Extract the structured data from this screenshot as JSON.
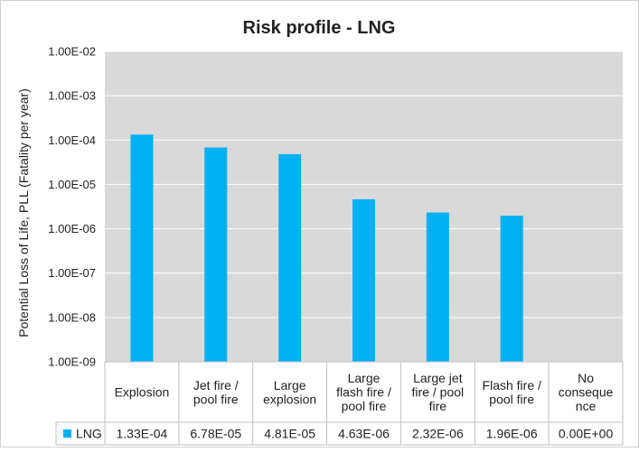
{
  "chart_data": {
    "type": "bar",
    "title": "Risk profile - LNG",
    "ylabel": "Potential Loss of Life, PLL (Fatality per year)",
    "xlabel": "",
    "yscale": "log",
    "ylim": [
      1e-09,
      0.01
    ],
    "ytick_labels": [
      "1.00E-02",
      "1.00E-03",
      "1.00E-04",
      "1.00E-05",
      "1.00E-06",
      "1.00E-07",
      "1.00E-08",
      "1.00E-09"
    ],
    "categories": [
      [
        "Explosion"
      ],
      [
        "Jet fire /",
        "pool fire"
      ],
      [
        "Large",
        "explosion"
      ],
      [
        "Large",
        "flash fire /",
        "pool fire"
      ],
      [
        "Large jet",
        "fire / pool",
        "fire"
      ],
      [
        "Flash fire /",
        "pool fire"
      ],
      [
        "No",
        "conseque",
        "nce"
      ]
    ],
    "series": [
      {
        "name": "LNG",
        "color": "#00b0f0",
        "values": [
          0.000133,
          6.78e-05,
          4.81e-05,
          4.63e-06,
          2.32e-06,
          1.96e-06,
          0
        ],
        "value_labels": [
          "1.33E-04",
          "6.78E-05",
          "4.81E-05",
          "4.63E-06",
          "2.32E-06",
          "1.96E-06",
          "0.00E+00"
        ]
      }
    ],
    "grid": true,
    "legend": "data-table",
    "colors": {
      "plot_background": "#d9d9d9",
      "gridline": "#ffffff",
      "bar": "#00b0f0"
    }
  }
}
